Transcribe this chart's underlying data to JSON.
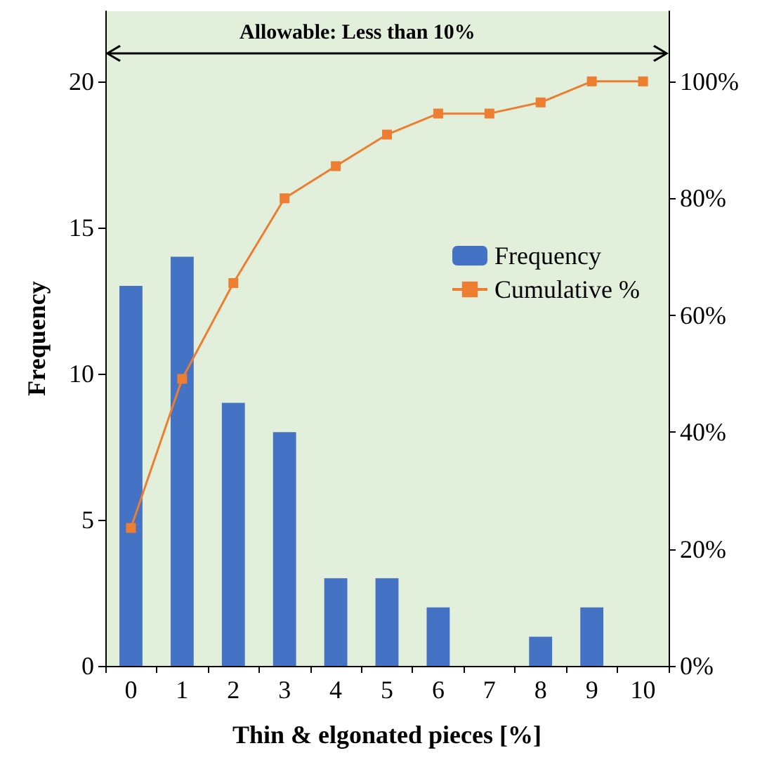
{
  "chart_data": {
    "type": "bar",
    "xlabel": "Thin & elgonated pieces [%]",
    "ylabel": "Frequency",
    "categories": [
      "0",
      "1",
      "2",
      "3",
      "4",
      "5",
      "6",
      "7",
      "8",
      "9",
      "10"
    ],
    "series": [
      {
        "name": "Frequency",
        "color": "#4472c4",
        "values": [
          13,
          14,
          9,
          8,
          3,
          3,
          2,
          0,
          1,
          2,
          0
        ]
      },
      {
        "name": "Cumulative %",
        "type": "line",
        "axis": "y2",
        "color": "#ed7d31",
        "marker": "square",
        "values": [
          23.6,
          49.1,
          65.5,
          80,
          85.5,
          90.9,
          94.5,
          94.5,
          96.4,
          100,
          100
        ]
      }
    ],
    "ylim": [
      0,
      22.4
    ],
    "yticks": [
      0,
      5,
      10,
      15,
      20
    ],
    "y2lim": [
      0,
      112
    ],
    "y2ticks": [
      {
        "value": 0,
        "label": "0%"
      },
      {
        "value": 20,
        "label": "20%"
      },
      {
        "value": 40,
        "label": "40%"
      },
      {
        "value": 60,
        "label": "60%"
      },
      {
        "value": 80,
        "label": "80%"
      },
      {
        "value": 100,
        "label": "100%"
      }
    ],
    "annotations": [
      "Allowable: Less than 10%"
    ],
    "legend": "right",
    "grid": false
  }
}
